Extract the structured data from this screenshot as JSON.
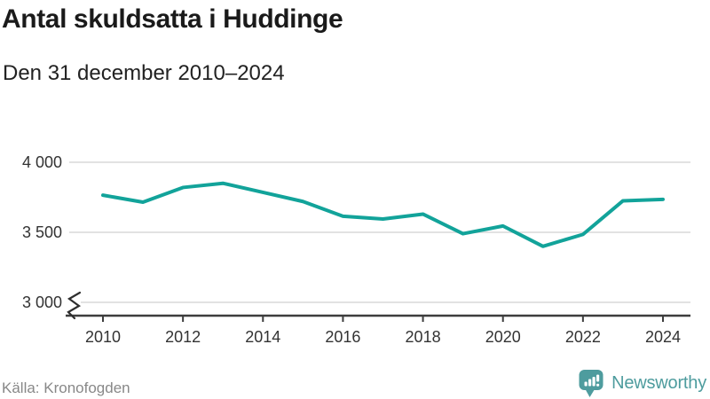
{
  "chart_data": {
    "type": "line",
    "title": "Antal skuldsatta i Huddinge",
    "subtitle": "Den 31 december 2010–2024",
    "x": [
      2010,
      2011,
      2012,
      2013,
      2014,
      2015,
      2016,
      2017,
      2018,
      2019,
      2020,
      2021,
      2022,
      2023,
      2024
    ],
    "series": [
      {
        "name": "Antal skuldsatta",
        "values": [
          3765,
          3715,
          3820,
          3850,
          3785,
          3720,
          3615,
          3595,
          3630,
          3490,
          3545,
          3400,
          3485,
          3725,
          3735
        ]
      }
    ],
    "ylim": [
      3000,
      4000
    ],
    "yticks": [
      {
        "value": 4000,
        "label": "4 000"
      },
      {
        "value": 3500,
        "label": "3 500"
      },
      {
        "value": 3000,
        "label": "3 000"
      }
    ],
    "xticks": [
      2010,
      2012,
      2014,
      2016,
      2018,
      2020,
      2022,
      2024
    ],
    "axis_break": true,
    "grid": true,
    "legend": "none"
  },
  "footer": {
    "source": "Källa: Kronofogden",
    "brand": "Newsworthy",
    "logo_icon": "bar-chart-speech-bubble-icon"
  },
  "colors": {
    "line": "#12a39a",
    "grid": "#e2e2e2",
    "axis": "#3d3d3d",
    "axis_break": "#2e2e2e",
    "tick_text": "#333333",
    "title_text": "#1a1a1a",
    "source_text": "#888888",
    "brand_teal": "#4e9c9e"
  }
}
